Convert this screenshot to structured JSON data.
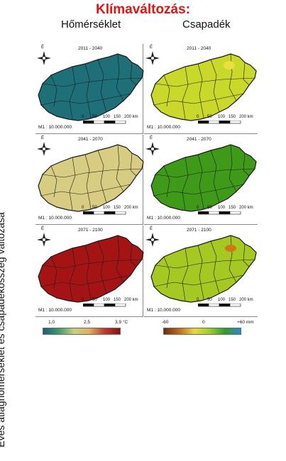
{
  "title": "Klímaváltozás:",
  "column_titles": {
    "temperature": "Hőmérséklet",
    "precipitation": "Csapadék"
  },
  "vertical_label": "Éves  átlaghőmérséklet és csapadékösszeg változása",
  "north_label": "É",
  "scale_text": "M1 : 10.000.000",
  "scalebar": {
    "ticks": [
      "0",
      "50",
      "100",
      "150",
      "200 km"
    ]
  },
  "periods": [
    "2011 - 2040",
    "2041 - 2070",
    "2071 - 2100"
  ],
  "colors": {
    "title": "#e11414",
    "temp_2011": "#1f6f78",
    "temp_2041": "#d8cc82",
    "temp_2071": "#a51414",
    "prec_2011": "#c9d82a",
    "prec_2041": "#3f9a1a",
    "prec_2071": "#a6c823",
    "border": "#1a1a1a"
  },
  "legends": {
    "temperature": {
      "min": "1,0",
      "mid": "2,5",
      "max": "3,9 °C"
    },
    "precipitation": {
      "min": "-60",
      "mid": "0",
      "max": "+60 mm"
    }
  }
}
